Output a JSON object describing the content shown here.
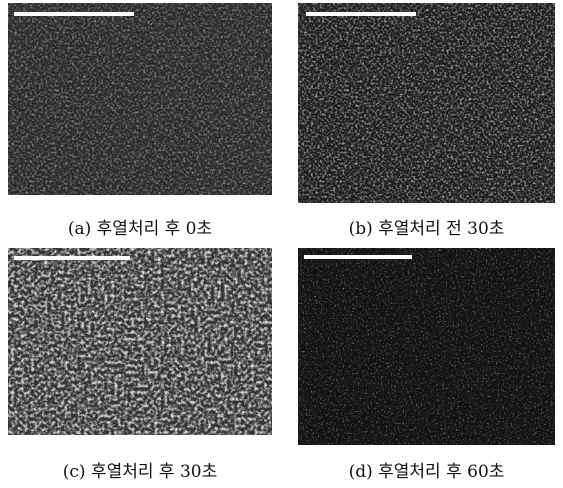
{
  "panels": [
    {
      "caption": "(a) 후열처리 후 0초"
    },
    {
      "caption": "(b) 후열처리 전 30초"
    },
    {
      "caption": "(c) 후열처리 후 30초"
    },
    {
      "caption": "(d) 후열처리 후 60초"
    }
  ]
}
